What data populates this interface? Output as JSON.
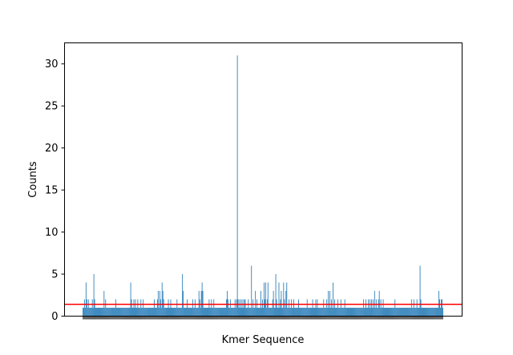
{
  "chart_data": {
    "type": "bar",
    "title": "",
    "xlabel": "Kmer Sequence",
    "ylabel": "Counts",
    "ylim": [
      0,
      32.5
    ],
    "yticks": [
      0,
      5,
      10,
      15,
      20,
      25,
      30
    ],
    "grid": false,
    "legend": "none",
    "bar_color": "#1f77b4",
    "threshold_line": {
      "value": 1.4,
      "color": "#ff0000"
    },
    "values": [
      1,
      1,
      2,
      1,
      4,
      2,
      1,
      2,
      1,
      1,
      1,
      1,
      2,
      1,
      5,
      2,
      1,
      1,
      1,
      1,
      1,
      1,
      1,
      1,
      1,
      1,
      1,
      3,
      1,
      2,
      1,
      1,
      1,
      1,
      1,
      1,
      1,
      1,
      1,
      1,
      1,
      1,
      2,
      1,
      1,
      1,
      1,
      1,
      1,
      1,
      1,
      1,
      1,
      1,
      1,
      1,
      1,
      1,
      1,
      1,
      1,
      4,
      2,
      1,
      1,
      2,
      1,
      2,
      1,
      1,
      2,
      1,
      1,
      1,
      2,
      1,
      1,
      2,
      1,
      1,
      1,
      1,
      1,
      1,
      1,
      1,
      1,
      1,
      1,
      1,
      1,
      2,
      1,
      1,
      1,
      2,
      3,
      1,
      3,
      2,
      1,
      4,
      3,
      2,
      1,
      1,
      1,
      1,
      1,
      2,
      1,
      1,
      2,
      1,
      1,
      1,
      1,
      1,
      1,
      1,
      2,
      1,
      1,
      1,
      1,
      1,
      1,
      5,
      3,
      1,
      1,
      1,
      1,
      2,
      1,
      1,
      1,
      1,
      1,
      1,
      2,
      1,
      1,
      2,
      1,
      1,
      1,
      1,
      3,
      2,
      1,
      3,
      4,
      3,
      1,
      1,
      1,
      1,
      1,
      1,
      1,
      2,
      1,
      1,
      2,
      1,
      1,
      2,
      1,
      1,
      1,
      1,
      1,
      1,
      1,
      1,
      1,
      1,
      1,
      1,
      1,
      1,
      1,
      2,
      3,
      2,
      1,
      1,
      2,
      1,
      1,
      1,
      1,
      1,
      2,
      1,
      2,
      31,
      2,
      1,
      2,
      1,
      2,
      1,
      2,
      1,
      2,
      2,
      1,
      1,
      1,
      2,
      1,
      1,
      1,
      6,
      1,
      2,
      1,
      1,
      3,
      1,
      2,
      1,
      1,
      1,
      1,
      3,
      1,
      2,
      1,
      4,
      2,
      4,
      1,
      2,
      4,
      1,
      1,
      1,
      1,
      1,
      2,
      3,
      1,
      1,
      5,
      2,
      1,
      1,
      4,
      1,
      2,
      3,
      1,
      1,
      4,
      2,
      1,
      3,
      4,
      1,
      1,
      2,
      1,
      1,
      2,
      1,
      1,
      2,
      1,
      1,
      1,
      1,
      1,
      2,
      1,
      1,
      1,
      1,
      1,
      1,
      1,
      1,
      1,
      1,
      2,
      1,
      1,
      1,
      1,
      1,
      1,
      2,
      1,
      1,
      1,
      2,
      1,
      2,
      1,
      1,
      1,
      1,
      1,
      1,
      1,
      2,
      1,
      1,
      1,
      2,
      1,
      3,
      1,
      3,
      1,
      2,
      1,
      4,
      1,
      2,
      1,
      1,
      1,
      2,
      1,
      1,
      1,
      2,
      1,
      1,
      1,
      1,
      2,
      1,
      1,
      1,
      1,
      1,
      1,
      1,
      1,
      1,
      1,
      1,
      1,
      1,
      1,
      1,
      1,
      1,
      1,
      1,
      1,
      1,
      1,
      1,
      2,
      1,
      1,
      2,
      1,
      1,
      2,
      1,
      2,
      1,
      2,
      1,
      2,
      1,
      3,
      1,
      2,
      1,
      1,
      2,
      3,
      1,
      2,
      1,
      1,
      2,
      1,
      1,
      1,
      1,
      1,
      1,
      1,
      1,
      1,
      1,
      1,
      1,
      1,
      1,
      2,
      1,
      1,
      1,
      1,
      1,
      1,
      1,
      1,
      1,
      1,
      1,
      1,
      1,
      1,
      1,
      1,
      1,
      1,
      1,
      1,
      2,
      1,
      1,
      2,
      1,
      1,
      1,
      2,
      1,
      1,
      1,
      6,
      2,
      1,
      1,
      1,
      1,
      1,
      1,
      1,
      1,
      1,
      1,
      1,
      1,
      1,
      1,
      1,
      1,
      1,
      1,
      1,
      1,
      1,
      1,
      3,
      2,
      1,
      2,
      2,
      1
    ]
  }
}
